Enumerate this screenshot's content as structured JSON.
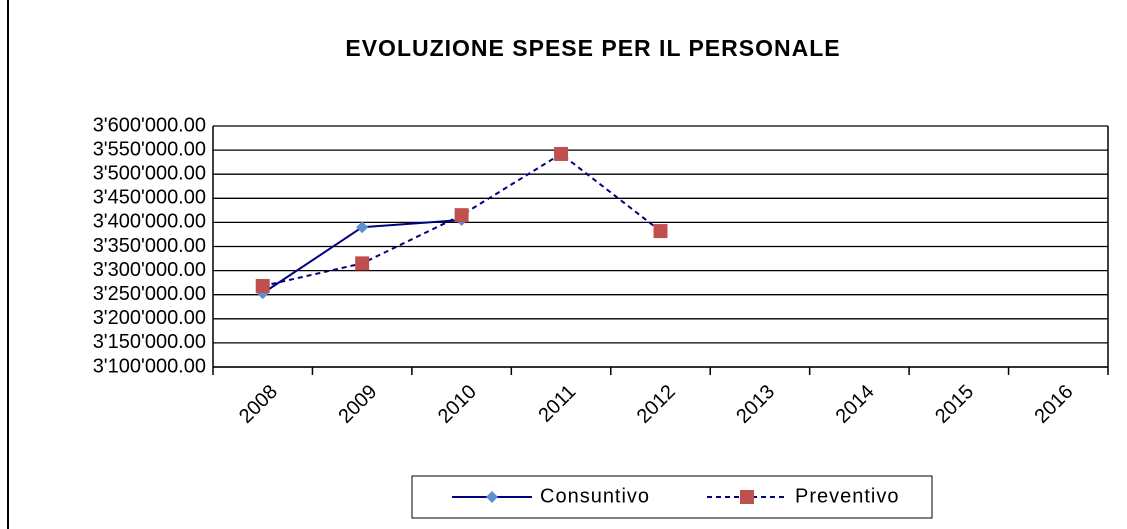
{
  "chart_data": {
    "type": "line",
    "title": "EVOLUZIONE SPESE PER IL PERSONALE",
    "categories": [
      "2008",
      "2009",
      "2010",
      "2011",
      "2012",
      "2013",
      "2014",
      "2015",
      "2016"
    ],
    "series": [
      {
        "name": "Consuntivo",
        "color": "#000080",
        "marker_color": "#5b8fd0",
        "marker": "diamond",
        "line_style": "solid",
        "values": [
          3253000,
          3390000,
          3405000,
          null,
          null,
          null,
          null,
          null,
          null
        ]
      },
      {
        "name": "Preventivo",
        "color": "#000080",
        "marker_color": "#c0504d",
        "marker": "square",
        "line_style": "dashed",
        "values": [
          3268000,
          3315000,
          3415000,
          3542000,
          3382000,
          null,
          null,
          null,
          null
        ]
      }
    ],
    "ylim": [
      3100000,
      3600000
    ],
    "yticks": [
      {
        "value": 3100000,
        "label": "3'100'000.00"
      },
      {
        "value": 3150000,
        "label": "3'150'000.00"
      },
      {
        "value": 3200000,
        "label": "3'200'000.00"
      },
      {
        "value": 3250000,
        "label": "3'250'000.00"
      },
      {
        "value": 3300000,
        "label": "3'300'000.00"
      },
      {
        "value": 3350000,
        "label": "3'350'000.00"
      },
      {
        "value": 3400000,
        "label": "3'400'000.00"
      },
      {
        "value": 3450000,
        "label": "3'450'000.00"
      },
      {
        "value": 3500000,
        "label": "3'500'000.00"
      },
      {
        "value": 3550000,
        "label": "3'550'000.00"
      },
      {
        "value": 3600000,
        "label": "3'600'000.00"
      }
    ],
    "grid": true,
    "legend": "bottom"
  }
}
